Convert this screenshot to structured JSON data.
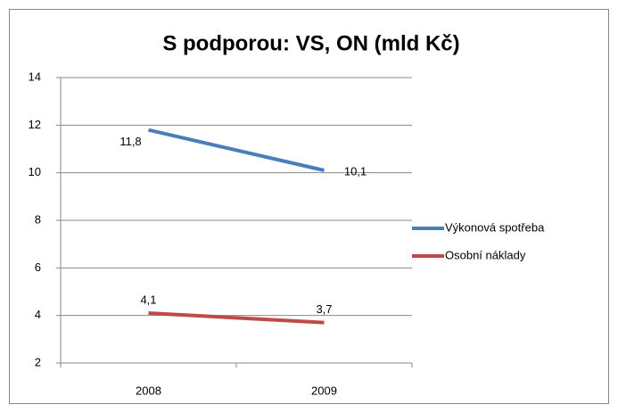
{
  "chart_data": {
    "type": "line",
    "title": "S podporou: VS, ON (mld Kč)",
    "categories": [
      "2008",
      "2009"
    ],
    "series": [
      {
        "name": "Výkonová spotřeba",
        "color": "#4a7ebb",
        "values": [
          11.8,
          10.1
        ],
        "value_labels": [
          "11,8",
          "10,1"
        ]
      },
      {
        "name": "Osobní náklady",
        "color": "#be4b48",
        "values": [
          4.1,
          3.7
        ],
        "value_labels": [
          "4,1",
          "3,7"
        ]
      }
    ],
    "ylim": [
      2,
      14
    ],
    "yticks": [
      2,
      4,
      6,
      8,
      10,
      12,
      14
    ],
    "grid": true,
    "legend": "right"
  }
}
